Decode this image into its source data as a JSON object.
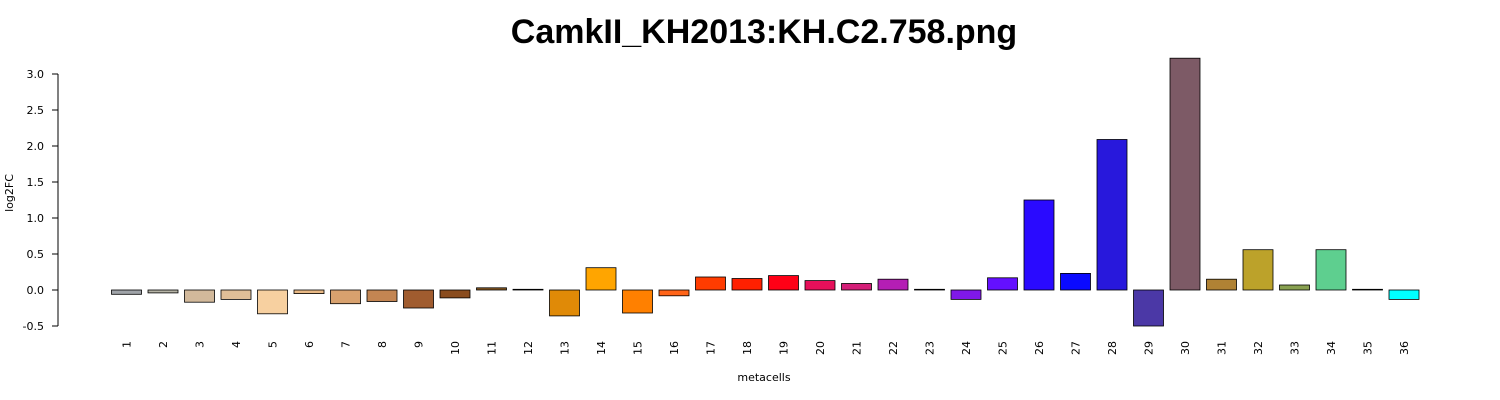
{
  "chart_data": {
    "type": "bar",
    "title": "CamkII_KH2013:KH.C2.758.png",
    "xlabel": "metacells",
    "ylabel": "log2FC",
    "ylim": [
      -0.5,
      3.0
    ],
    "yticks": [
      "-0.5",
      "0.0",
      "0.5",
      "1.0",
      "1.5",
      "2.0",
      "2.5",
      "3.0"
    ],
    "grid": false,
    "categories": [
      "1",
      "2",
      "3",
      "4",
      "5",
      "6",
      "7",
      "8",
      "9",
      "10",
      "11",
      "12",
      "13",
      "14",
      "15",
      "16",
      "17",
      "18",
      "19",
      "20",
      "21",
      "22",
      "23",
      "24",
      "25",
      "26",
      "27",
      "28",
      "29",
      "30",
      "31",
      "32",
      "33",
      "34",
      "35",
      "36"
    ],
    "values": [
      -0.06,
      -0.04,
      -0.17,
      -0.13,
      -0.33,
      -0.05,
      -0.19,
      -0.16,
      -0.25,
      -0.11,
      0.03,
      0.01,
      -0.36,
      0.31,
      -0.32,
      -0.08,
      0.18,
      0.16,
      0.2,
      0.13,
      0.09,
      0.15,
      0.01,
      -0.13,
      0.17,
      1.25,
      0.23,
      2.09,
      -0.5,
      3.22,
      0.15,
      0.56,
      0.07,
      0.56,
      0.01,
      -0.13
    ],
    "colors": [
      "#a0a4a9",
      "#b6b4a6",
      "#d2b99b",
      "#e0bf98",
      "#f7d0a0",
      "#e9b985",
      "#d8a16e",
      "#c38552",
      "#a05c2f",
      "#8a4c1e",
      "#8a5a22",
      "#6e4a1e",
      "#e08a07",
      "#ffa500",
      "#ff8000",
      "#ff6418",
      "#ff3c00",
      "#ff2000",
      "#ff0016",
      "#e6105a",
      "#d41e78",
      "#b41eb4",
      "#7000c8",
      "#8018e8",
      "#6410ff",
      "#2a0aff",
      "#0a0aff",
      "#2818dc",
      "#4b38a6",
      "#7d5a66",
      "#b08234",
      "#bca22a",
      "#88a050",
      "#5ecf8f",
      "#10ffdc",
      "#00ffff"
    ]
  }
}
